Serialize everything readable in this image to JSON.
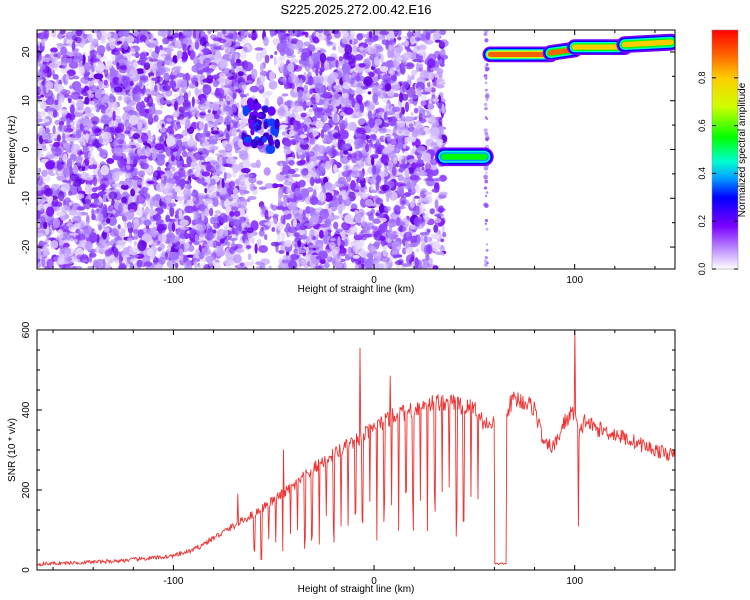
{
  "title": "S225.2025.272.00.42.E16",
  "chart_data": [
    {
      "type": "heatmap",
      "xlabel": "Height of straight line (km)",
      "ylabel": "Frequency (Hz)",
      "xlim": [
        -168,
        150
      ],
      "ylim": [
        -24.5,
        24.5
      ],
      "x_ticks": [
        -100,
        0,
        100
      ],
      "y_ticks": [
        -20,
        -10,
        0,
        10,
        20
      ],
      "colorbar": {
        "label": "Normalized spectral amplitude",
        "range": [
          0,
          1
        ],
        "ticks": [
          "0.0",
          "0.2",
          "0.4",
          "0.6",
          "0.8"
        ]
      },
      "noise_regions": [
        {
          "x_start": -168,
          "x_end": -63,
          "density": 1.0
        },
        {
          "x_start": -63,
          "x_end": -47,
          "density": 0.3
        },
        {
          "x_start": -47,
          "x_end": 35,
          "density": 0.95
        }
      ],
      "traces": [
        {
          "x_start": -65,
          "x_end": -48,
          "f_start": 6,
          "f_end": 4,
          "amplitude": 0.2,
          "width": 4.5
        },
        {
          "x_start": 35,
          "x_end": 55,
          "f_start": -1.5,
          "f_end": -1.5,
          "amplitude": 0.6,
          "width": 1.2
        },
        {
          "x_start": 58,
          "x_end": 88,
          "f_start": 19.5,
          "f_end": 19.5,
          "amplitude": 0.95,
          "width": 0.9
        },
        {
          "x_start": 88,
          "x_end": 100,
          "f_start": 19.8,
          "f_end": 20.5,
          "amplitude": 0.9,
          "width": 0.9
        },
        {
          "x_start": 100,
          "x_end": 125,
          "f_start": 21,
          "f_end": 21,
          "amplitude": 0.8,
          "width": 0.9
        },
        {
          "x_start": 125,
          "x_end": 148,
          "f_start": 21.5,
          "f_end": 22,
          "amplitude": 0.8,
          "width": 1.0
        }
      ]
    },
    {
      "type": "line",
      "xlabel": "Height of straight line (km)",
      "ylabel": "SNR (10 * v/v)",
      "xlim": [
        -168,
        150
      ],
      "ylim": [
        0,
        600
      ],
      "x_ticks": [
        -100,
        0,
        100
      ],
      "y_ticks": [
        0,
        200,
        400,
        600
      ],
      "color": "#f03232",
      "series": [
        {
          "x": [
            -168,
            -150,
            -130,
            -110,
            -100,
            -90,
            -80,
            -70,
            -60,
            -50,
            -40,
            -30,
            -20,
            -10,
            0,
            10,
            20,
            30,
            40,
            45,
            50,
            55,
            60,
            62,
            64,
            66,
            70,
            75,
            80,
            85,
            90,
            95,
            100,
            102,
            105,
            110,
            120,
            130,
            140,
            150
          ],
          "y": [
            15,
            18,
            22,
            30,
            35,
            50,
            80,
            110,
            140,
            175,
            210,
            255,
            290,
            320,
            355,
            385,
            405,
            420,
            420,
            405,
            410,
            365,
            370,
            35,
            380,
            400,
            430,
            420,
            405,
            310,
            310,
            370,
            400,
            330,
            375,
            355,
            340,
            320,
            300,
            285
          ]
        }
      ],
      "spikes": [
        {
          "x": -7,
          "y": 555
        },
        {
          "x": 8,
          "y": 485
        },
        {
          "x": 100,
          "y": 598
        },
        {
          "x": 102,
          "y": 110
        },
        {
          "x": -68,
          "y": 190
        },
        {
          "x": -45,
          "y": 300
        }
      ],
      "dropouts": [
        {
          "x_start": 60,
          "x_end": 66,
          "y": 10
        }
      ]
    }
  ]
}
